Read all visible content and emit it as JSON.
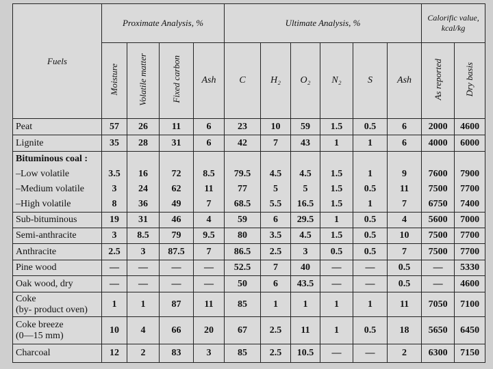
{
  "table": {
    "corner": "Fuels",
    "groups": [
      {
        "label": "Proximate Analysis, %",
        "columns": [
          {
            "label": "Moisture",
            "vertical": true
          },
          {
            "label": "Volatile matter",
            "vertical": true
          },
          {
            "label": "Fixed carbon",
            "vertical": true
          },
          {
            "label": "Ash",
            "vertical": false
          }
        ]
      },
      {
        "label": "Ultimate Analysis, %",
        "columns": [
          {
            "label": "C",
            "vertical": false
          },
          {
            "label": "H₂",
            "vertical": false
          },
          {
            "label": "O₂",
            "vertical": false
          },
          {
            "label": "N₂",
            "vertical": false
          },
          {
            "label": "S",
            "vertical": false
          },
          {
            "label": "Ash",
            "vertical": false
          }
        ]
      },
      {
        "label": "Calorific value, kcal/kg",
        "columns": [
          {
            "label": "As reported",
            "vertical": true
          },
          {
            "label": "Dry basis",
            "vertical": true
          }
        ]
      }
    ],
    "rows": [
      {
        "fuel": "Peat",
        "values": [
          "57",
          "26",
          "11",
          "6",
          "23",
          "10",
          "59",
          "1.5",
          "0.5",
          "6",
          "2000",
          "4600"
        ]
      },
      {
        "fuel": "Lignite",
        "values": [
          "35",
          "28",
          "31",
          "6",
          "42",
          "7",
          "43",
          "1",
          "1",
          "6",
          "4000",
          "6000"
        ]
      },
      {
        "fuel": "Bituminous coal :",
        "subrows": [
          {
            "fuel": "–Low volatile",
            "values": [
              "3.5",
              "16",
              "72",
              "8.5",
              "79.5",
              "4.5",
              "4.5",
              "1.5",
              "1",
              "9",
              "7600",
              "7900"
            ]
          },
          {
            "fuel": "–Medium volatile",
            "values": [
              "3",
              "24",
              "62",
              "11",
              "77",
              "5",
              "5",
              "1.5",
              "0.5",
              "11",
              "7500",
              "7700"
            ]
          },
          {
            "fuel": "–High volatile",
            "values": [
              "8",
              "36",
              "49",
              "7",
              "68.5",
              "5.5",
              "16.5",
              "1.5",
              "1",
              "7",
              "6750",
              "7400"
            ]
          }
        ]
      },
      {
        "fuel": "Sub-bituminous",
        "values": [
          "19",
          "31",
          "46",
          "4",
          "59",
          "6",
          "29.5",
          "1",
          "0.5",
          "4",
          "5600",
          "7000"
        ]
      },
      {
        "fuel": "Semi-anthracite",
        "values": [
          "3",
          "8.5",
          "79",
          "9.5",
          "80",
          "3.5",
          "4.5",
          "1.5",
          "0.5",
          "10",
          "7500",
          "7700"
        ]
      },
      {
        "fuel": "Anthracite",
        "values": [
          "2.5",
          "3",
          "87.5",
          "7",
          "86.5",
          "2.5",
          "3",
          "0.5",
          "0.5",
          "7",
          "7500",
          "7700"
        ]
      },
      {
        "fuel": "Pine wood",
        "values": [
          "—",
          "—",
          "—",
          "—",
          "52.5",
          "7",
          "40",
          "—",
          "—",
          "0.5",
          "—",
          "5330"
        ]
      },
      {
        "fuel": "Oak wood, dry",
        "values": [
          "—",
          "—",
          "—",
          "—",
          "50",
          "6",
          "43.5",
          "—",
          "—",
          "0.5",
          "—",
          "4600"
        ]
      },
      {
        "fuel": "Coke",
        "fuel_note": "(by- product oven)",
        "values": [
          "1",
          "1",
          "87",
          "11",
          "85",
          "1",
          "1",
          "1",
          "1",
          "11",
          "7050",
          "7100"
        ]
      },
      {
        "fuel": "Coke breeze",
        "fuel_note": "(0—15 mm)",
        "values": [
          "10",
          "4",
          "66",
          "20",
          "67",
          "2.5",
          "11",
          "1",
          "0.5",
          "18",
          "5650",
          "6450"
        ]
      },
      {
        "fuel": "Charcoal",
        "values": [
          "12",
          "2",
          "83",
          "3",
          "85",
          "2.5",
          "10.5",
          "—",
          "—",
          "2",
          "6300",
          "7150"
        ]
      }
    ]
  }
}
